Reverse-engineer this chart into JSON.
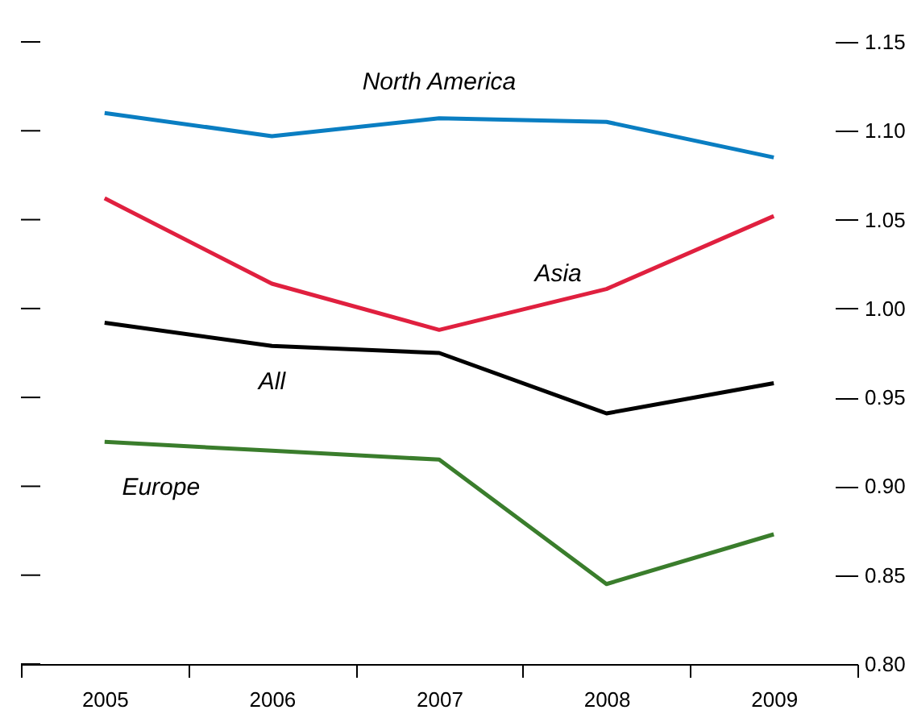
{
  "chart_data": {
    "type": "line",
    "categories": [
      "2005",
      "2006",
      "2007",
      "2008",
      "2009"
    ],
    "series": [
      {
        "name": "North America",
        "color": "#0a7ec2",
        "values": [
          1.11,
          1.097,
          1.107,
          1.105,
          1.085
        ]
      },
      {
        "name": "Asia",
        "color": "#e0203f",
        "values": [
          1.062,
          1.014,
          0.988,
          1.011,
          1.052
        ]
      },
      {
        "name": "All",
        "color": "#000000",
        "values": [
          0.992,
          0.979,
          0.975,
          0.941,
          0.958
        ]
      },
      {
        "name": "Europe",
        "color": "#3a7d2c",
        "values": [
          0.925,
          0.92,
          0.915,
          0.845,
          0.873
        ]
      }
    ],
    "ylim": [
      0.8,
      1.15
    ],
    "yticks": [
      {
        "value": 0.8,
        "label": "0.80"
      },
      0.85,
      {
        "value": 0.9,
        "label": "0.90"
      },
      0.95,
      {
        "value": 1,
        "label": "1.00"
      },
      1.05,
      {
        "value": 1.1,
        "label": "1.10"
      },
      1.15
    ],
    "grid": false,
    "legend": false,
    "marker": "none",
    "line_style": "solid"
  }
}
